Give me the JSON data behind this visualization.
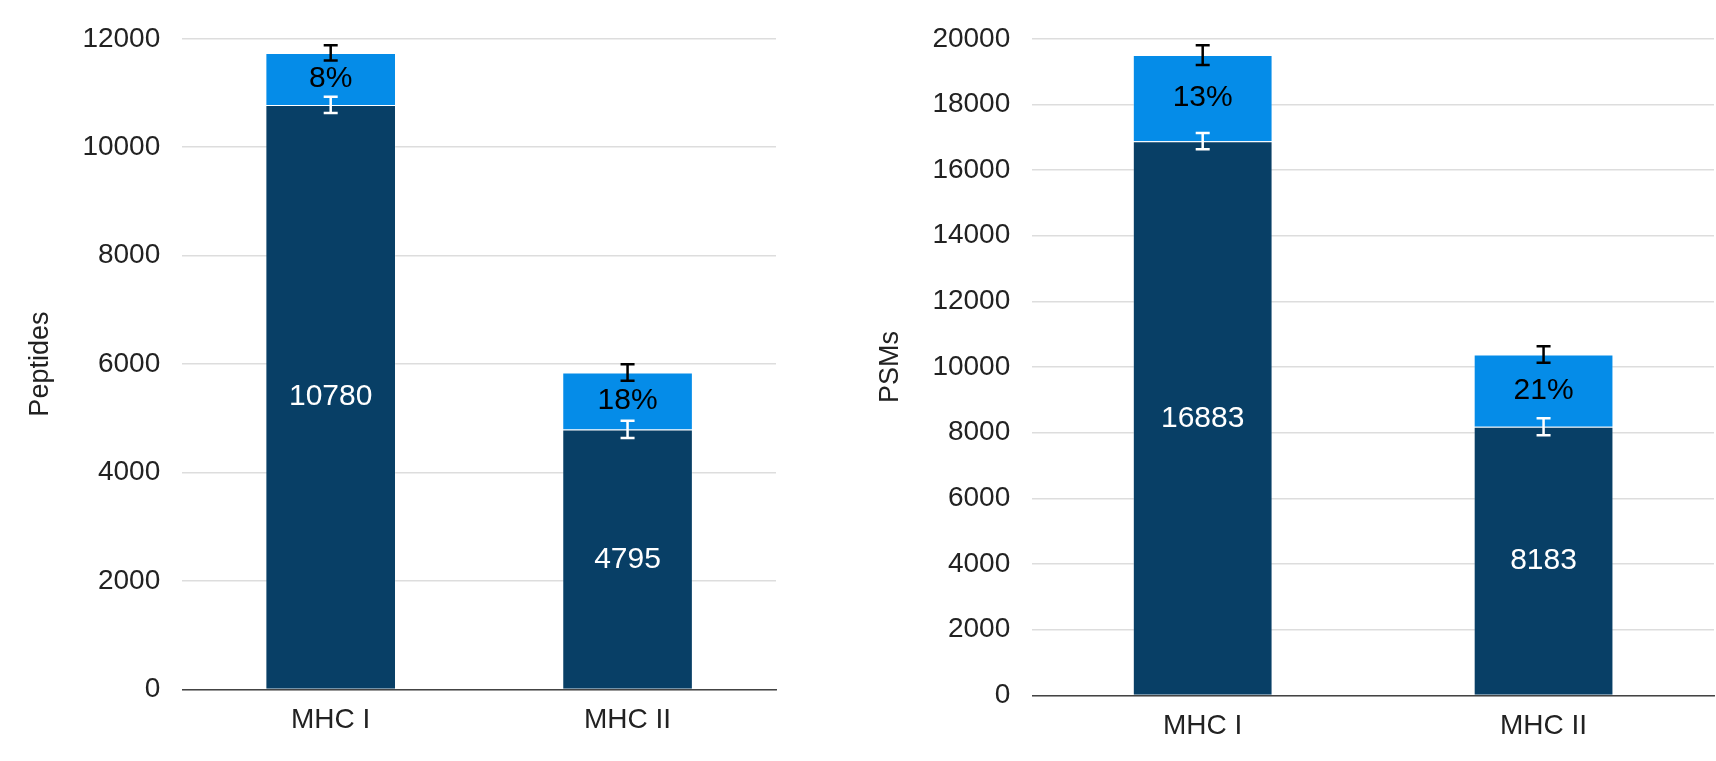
{
  "chart_data": [
    {
      "type": "bar",
      "stacked": true,
      "categories": [
        "MHC I",
        "MHC II"
      ],
      "ylabel": "Peptides",
      "ylim": [
        0,
        12000
      ],
      "yticks": [
        0,
        2000,
        4000,
        6000,
        8000,
        10000,
        12000
      ],
      "grid": "y",
      "legend": false,
      "series": [
        {
          "color": "#083f66",
          "values": [
            10780,
            4795
          ],
          "errors": [
            150,
            160
          ],
          "value_labels": [
            "10780",
            "4795"
          ]
        },
        {
          "color": "#058ce8",
          "values": [
            960,
            1050
          ],
          "errors": [
            140,
            150
          ]
        }
      ],
      "annotations": [
        {
          "text": "8%",
          "x": "MHC I",
          "y": 11740
        },
        {
          "text": "18%",
          "x": "MHC II",
          "y": 5845
        }
      ]
    },
    {
      "type": "bar",
      "stacked": true,
      "categories": [
        "MHC I",
        "MHC II"
      ],
      "ylabel": "PSMs",
      "ylim": [
        0,
        20000
      ],
      "yticks": [
        0,
        2000,
        4000,
        6000,
        8000,
        10000,
        12000,
        14000,
        16000,
        18000,
        20000
      ],
      "grid": "y",
      "legend": false,
      "series": [
        {
          "color": "#083f66",
          "values": [
            16883,
            8183
          ],
          "errors": [
            250,
            260
          ],
          "value_labels": [
            "16883",
            "8183"
          ]
        },
        {
          "color": "#058ce8",
          "values": [
            2620,
            2200
          ],
          "errors": [
            300,
            250
          ]
        }
      ],
      "annotations": [
        {
          "text": "13%",
          "x": "MHC I",
          "y": 19503
        },
        {
          "text": "21%",
          "x": "MHC II",
          "y": 10383
        }
      ]
    }
  ]
}
